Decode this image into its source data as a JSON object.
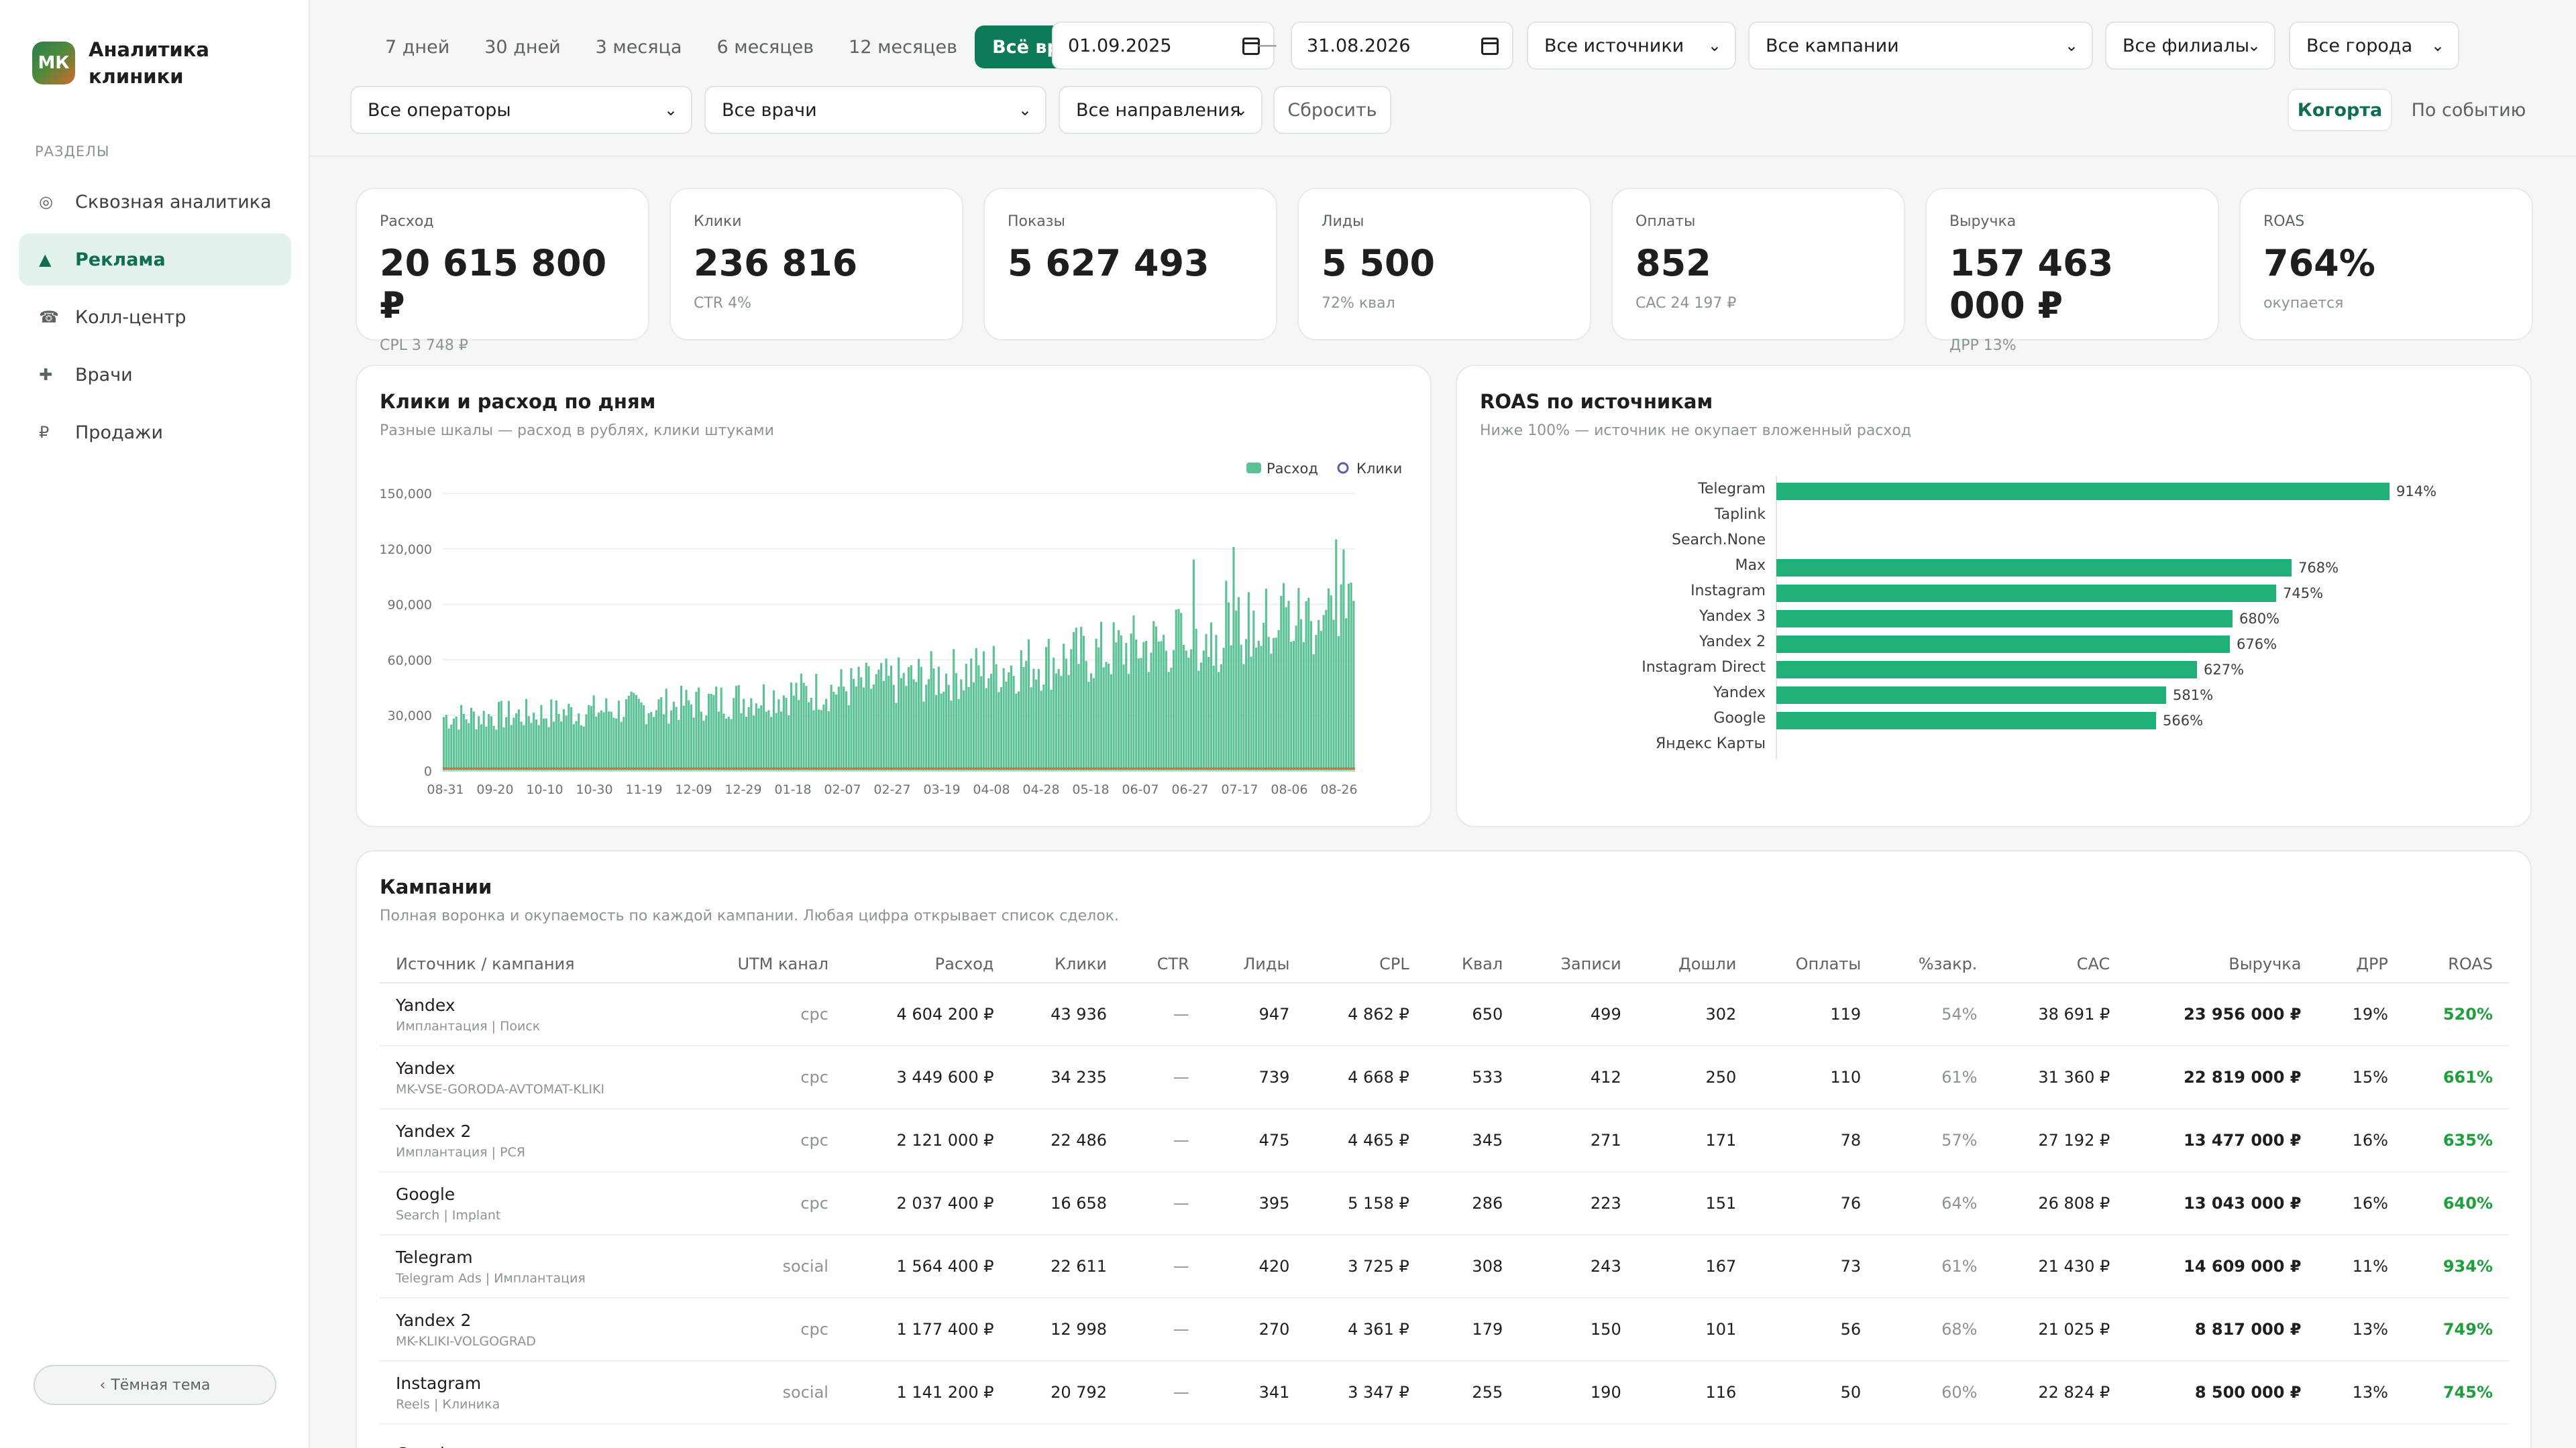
{
  "app": {
    "logo_text": "МК",
    "title": "Аналитика клиники"
  },
  "sidebar": {
    "section_label": "РАЗДЕЛЫ",
    "items": [
      {
        "label": "Сквозная аналитика",
        "icon": "target-icon",
        "glyph": "◎"
      },
      {
        "label": "Реклама",
        "icon": "triangle-icon",
        "glyph": "▲"
      },
      {
        "label": "Колл-центр",
        "icon": "phone-icon",
        "glyph": "☎"
      },
      {
        "label": "Врачи",
        "icon": "plus-icon",
        "glyph": "✚"
      },
      {
        "label": "Продажи",
        "icon": "ruble-icon",
        "glyph": "₽"
      }
    ],
    "active_index": 1,
    "theme_toggle": "Тёмная тема"
  },
  "filters": {
    "periods": [
      "7 дней",
      "30 дней",
      "3 месяца",
      "6 месяцев",
      "12 месяцев",
      "Всё время"
    ],
    "active_period": 5,
    "date_from": "01.09.2025",
    "date_sep": "—",
    "date_to": "31.08.2026",
    "sources": "Все источники",
    "campaigns": "Все кампании",
    "branches": "Все филиалы",
    "cities": "Все города",
    "operators": "Все операторы",
    "doctors": "Все врачи",
    "directions": "Все направления",
    "reset": "Сбросить",
    "mode_cohort": "Когорта",
    "mode_event": "По событию"
  },
  "kpis": [
    {
      "label": "Расход",
      "value": "20 615 800 ₽",
      "sub": "CPL 3 748 ₽"
    },
    {
      "label": "Клики",
      "value": "236 816",
      "sub": "CTR 4%"
    },
    {
      "label": "Показы",
      "value": "5 627 493",
      "sub": ""
    },
    {
      "label": "Лиды",
      "value": "5 500",
      "sub": "72% квал"
    },
    {
      "label": "Оплаты",
      "value": "852",
      "sub": "CAC 24 197 ₽"
    },
    {
      "label": "Выручка",
      "value": "157 463 000 ₽",
      "sub": "ДРР 13%"
    },
    {
      "label": "ROAS",
      "value": "764%",
      "sub": "окупается"
    }
  ],
  "chart_data": [
    {
      "type": "bar",
      "title": "Клики и расход по дням",
      "subtitle": "Разные шкалы — расход в рублях, клики штуками",
      "legend": [
        "Расход",
        "Клики"
      ],
      "legend_position": "top-right",
      "ylim": [
        0,
        150000
      ],
      "yticks": [
        "0",
        "30,000",
        "60,000",
        "90,000",
        "120,000",
        "150,000"
      ],
      "xticks": [
        "08-31",
        "09-20",
        "10-10",
        "10-30",
        "11-19",
        "12-09",
        "12-29",
        "01-18",
        "02-07",
        "02-27",
        "03-19",
        "04-08",
        "04-28",
        "05-18",
        "06-07",
        "06-27",
        "07-17",
        "08-06",
        "08-26"
      ],
      "series": [
        {
          "name": "Расход",
          "color": "#5cc195",
          "start_value": 30000,
          "end_value": 90000,
          "peak": 130000,
          "days": 365
        },
        {
          "name": "Клики",
          "color": "#e06b3a",
          "approx_value": 650
        }
      ]
    },
    {
      "type": "bar",
      "orientation": "horizontal",
      "title": "ROAS по источникам",
      "subtitle": "Ниже 100% — источник не окупает вложенный расход",
      "categories": [
        "Telegram",
        "Taplink",
        "Search.None",
        "Max",
        "Instagram",
        "Yandex 3",
        "Yandex 2",
        "Instagram Direct",
        "Yandex",
        "Google",
        "Яндекс Карты"
      ],
      "values": [
        914,
        null,
        null,
        768,
        745,
        680,
        676,
        627,
        581,
        566,
        null
      ],
      "labels": [
        "914%",
        "",
        "",
        "768%",
        "745%",
        "680%",
        "676%",
        "627%",
        "581%",
        "566%",
        ""
      ],
      "xlim": [
        0,
        1000
      ],
      "color": "#1fb077"
    }
  ],
  "campaigns": {
    "title": "Кампании",
    "subtitle": "Полная воронка и окупаемость по каждой кампании. Любая цифра открывает список сделок.",
    "columns": [
      "Источник / кампания",
      "UTM канал",
      "Расход",
      "Клики",
      "CTR",
      "Лиды",
      "CPL",
      "Квал",
      "Записи",
      "Дошли",
      "Оплаты",
      "%закр.",
      "CAC",
      "Выручка",
      "ДРР",
      "ROAS"
    ],
    "rows": [
      {
        "source": "Yandex",
        "campaign": "Имплантация | Поиск",
        "utm": "cpc",
        "spend": "4 604 200 ₽",
        "clicks": "43 936",
        "ctr": "—",
        "leads": "947",
        "cpl": "4 862 ₽",
        "qual": "650",
        "appts": "499",
        "came": "302",
        "paid": "119",
        "close": "54%",
        "cac": "38 691 ₽",
        "revenue": "23 956 000 ₽",
        "drr": "19%",
        "roas": "520%"
      },
      {
        "source": "Yandex",
        "campaign": "MK-VSE-GORODA-AVTOMAT-KLIKI",
        "utm": "cpc",
        "spend": "3 449 600 ₽",
        "clicks": "34 235",
        "ctr": "—",
        "leads": "739",
        "cpl": "4 668 ₽",
        "qual": "533",
        "appts": "412",
        "came": "250",
        "paid": "110",
        "close": "61%",
        "cac": "31 360 ₽",
        "revenue": "22 819 000 ₽",
        "drr": "15%",
        "roas": "661%"
      },
      {
        "source": "Yandex 2",
        "campaign": "Имплантация | РСЯ",
        "utm": "cpc",
        "spend": "2 121 000 ₽",
        "clicks": "22 486",
        "ctr": "—",
        "leads": "475",
        "cpl": "4 465 ₽",
        "qual": "345",
        "appts": "271",
        "came": "171",
        "paid": "78",
        "close": "57%",
        "cac": "27 192 ₽",
        "revenue": "13 477 000 ₽",
        "drr": "16%",
        "roas": "635%"
      },
      {
        "source": "Google",
        "campaign": "Search | Implant",
        "utm": "cpc",
        "spend": "2 037 400 ₽",
        "clicks": "16 658",
        "ctr": "—",
        "leads": "395",
        "cpl": "5 158 ₽",
        "qual": "286",
        "appts": "223",
        "came": "151",
        "paid": "76",
        "close": "64%",
        "cac": "26 808 ₽",
        "revenue": "13 043 000 ₽",
        "drr": "16%",
        "roas": "640%"
      },
      {
        "source": "Telegram",
        "campaign": "Telegram Ads | Имплантация",
        "utm": "social",
        "spend": "1 564 400 ₽",
        "clicks": "22 611",
        "ctr": "—",
        "leads": "420",
        "cpl": "3 725 ₽",
        "qual": "308",
        "appts": "243",
        "came": "167",
        "paid": "73",
        "close": "61%",
        "cac": "21 430 ₽",
        "revenue": "14 609 000 ₽",
        "drr": "11%",
        "roas": "934%"
      },
      {
        "source": "Yandex 2",
        "campaign": "MK-KLIKI-VOLGOGRAD",
        "utm": "cpc",
        "spend": "1 177 400 ₽",
        "clicks": "12 998",
        "ctr": "—",
        "leads": "270",
        "cpl": "4 361 ₽",
        "qual": "179",
        "appts": "150",
        "came": "101",
        "paid": "56",
        "close": "68%",
        "cac": "21 025 ₽",
        "revenue": "8 817 000 ₽",
        "drr": "13%",
        "roas": "749%"
      },
      {
        "source": "Instagram",
        "campaign": "Reels | Клиника",
        "utm": "social",
        "spend": "1 141 200 ₽",
        "clicks": "20 792",
        "ctr": "—",
        "leads": "341",
        "cpl": "3 347 ₽",
        "qual": "255",
        "appts": "190",
        "came": "116",
        "paid": "50",
        "close": "60%",
        "cac": "22 824 ₽",
        "revenue": "8 500 000 ₽",
        "drr": "13%",
        "roas": "745%"
      },
      {
        "source": "Google",
        "campaign": "",
        "utm": "",
        "spend": "",
        "clicks": "",
        "ctr": "",
        "leads": "",
        "cpl": "",
        "qual": "",
        "appts": "",
        "came": "",
        "paid": "",
        "close": "",
        "cac": "",
        "revenue": "",
        "drr": "",
        "roas": ""
      }
    ]
  }
}
